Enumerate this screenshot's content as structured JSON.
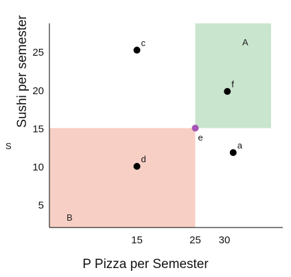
{
  "chart_data": {
    "type": "scatter",
    "xlabel": "P Pizza per Semester",
    "ylabel": "Sushi per semester",
    "y_unit_label": "S",
    "xlim": [
      0,
      40
    ],
    "ylim": [
      2,
      28.7
    ],
    "x_ticks": [
      "15",
      "25",
      "30"
    ],
    "x_tick_values": [
      15,
      25,
      30
    ],
    "y_ticks": [
      "5",
      "10",
      "15",
      "20",
      "25"
    ],
    "y_tick_values": [
      5,
      10,
      15,
      20,
      25
    ],
    "grid": false,
    "regions": [
      {
        "label": "A",
        "x": [
          25,
          38
        ],
        "y": [
          15,
          28.7
        ],
        "color": "#c9e5cd"
      },
      {
        "label": "B",
        "x": [
          0,
          25
        ],
        "y": [
          2,
          15
        ],
        "color": "#f8cfc4"
      }
    ],
    "points": [
      {
        "label": "c",
        "x": 15,
        "y": 25.2,
        "color": "#000000"
      },
      {
        "label": "f",
        "x": 30.5,
        "y": 19.8,
        "color": "#000000"
      },
      {
        "label": "e",
        "x": 25,
        "y": 15,
        "color": "#a556b6"
      },
      {
        "label": "a",
        "x": 31.5,
        "y": 11.8,
        "color": "#000000"
      },
      {
        "label": "d",
        "x": 15,
        "y": 10,
        "color": "#000000"
      }
    ]
  }
}
